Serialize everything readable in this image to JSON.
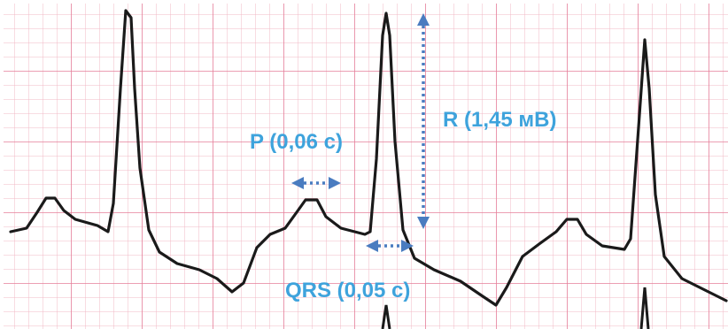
{
  "annotations": {
    "p_duration": "P (0,06 с)",
    "r_amplitude": "R (1,45 мВ)",
    "qrs_duration": "QRS (0,05 с)"
  }
}
